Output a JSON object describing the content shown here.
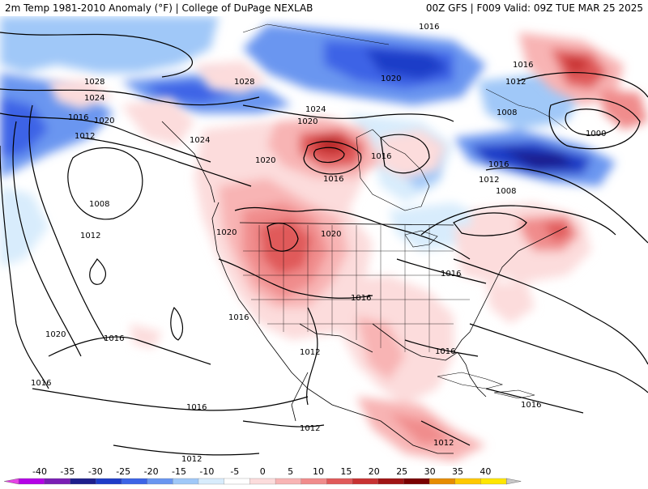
{
  "header": {
    "title": "2m Temp 1981-2010 Anomaly (°F) | College of DuPage NEXLAB",
    "run_info": "00Z GFS | F009 Valid: 09Z TUE MAR 25 2025"
  },
  "colorbar": {
    "ticks": [
      "-40",
      "-35",
      "-30",
      "-25",
      "-20",
      "-15",
      "-10",
      "-5",
      "0",
      "5",
      "10",
      "15",
      "20",
      "25",
      "30",
      "35",
      "40"
    ],
    "colors": [
      "#e642e6",
      "#b400e6",
      "#7a1eb4",
      "#1e1e8c",
      "#1e3cc8",
      "#3c64e6",
      "#6a96f0",
      "#a0c8f8",
      "#d8ecfc",
      "#ffffff",
      "#fcdcdc",
      "#f8b4b4",
      "#f08c8c",
      "#e05a5a",
      "#c83232",
      "#a01414",
      "#7a0000",
      "#e68c00",
      "#ffc800",
      "#ffe600",
      "#c8c8c8"
    ]
  },
  "map": {
    "isobar_labels": [
      {
        "text": "1016",
        "id": "n-atl-1016-a"
      },
      {
        "text": "1016",
        "id": "n-atl-1016-b"
      },
      {
        "text": "1012",
        "id": "n-atl-1012-a"
      },
      {
        "text": "1008",
        "id": "n-atl-1008"
      },
      {
        "text": "1000",
        "id": "n-atl-1000"
      },
      {
        "text": "1020",
        "id": "arctic-1020"
      },
      {
        "text": "1028",
        "id": "pac-1028-a"
      },
      {
        "text": "1028",
        "id": "pac-1028-b"
      },
      {
        "text": "1024",
        "id": "pac-1024-a"
      },
      {
        "text": "1024",
        "id": "canada-1024"
      },
      {
        "text": "1024",
        "id": "pac-1024-b"
      },
      {
        "text": "1016",
        "id": "pac-1016-a"
      },
      {
        "text": "1020",
        "id": "pac-1020-a"
      },
      {
        "text": "1012",
        "id": "pac-1012-a"
      },
      {
        "text": "1020",
        "id": "canada-1020-a"
      },
      {
        "text": "1020",
        "id": "canada-1020-b"
      },
      {
        "text": "1016",
        "id": "canada-1016-a"
      },
      {
        "text": "1016",
        "id": "canada-1016-b"
      },
      {
        "text": "1016",
        "id": "hudson-1016"
      },
      {
        "text": "1012",
        "id": "east-1012"
      },
      {
        "text": "1008",
        "id": "east-1008"
      },
      {
        "text": "1008",
        "id": "pac-1008"
      },
      {
        "text": "1012",
        "id": "pac-1012-b"
      },
      {
        "text": "1020",
        "id": "west-1020-a"
      },
      {
        "text": "1020",
        "id": "rockies-1020"
      },
      {
        "text": "1016",
        "id": "plains-1016"
      },
      {
        "text": "1016",
        "id": "ohio-1016"
      },
      {
        "text": "1016",
        "id": "west-1016"
      },
      {
        "text": "1020",
        "id": "pac-1020-b"
      },
      {
        "text": "1016",
        "id": "pac-1016-b"
      },
      {
        "text": "1012",
        "id": "mexico-1012"
      },
      {
        "text": "1016",
        "id": "gulf-1016"
      },
      {
        "text": "1016",
        "id": "pac-1016-c"
      },
      {
        "text": "1016",
        "id": "pac-1016-d"
      },
      {
        "text": "1016",
        "id": "atl-1016"
      },
      {
        "text": "1012",
        "id": "epac-1012-a"
      },
      {
        "text": "1012",
        "id": "carib-1012"
      },
      {
        "text": "1012",
        "id": "epac-1012-b"
      }
    ]
  }
}
